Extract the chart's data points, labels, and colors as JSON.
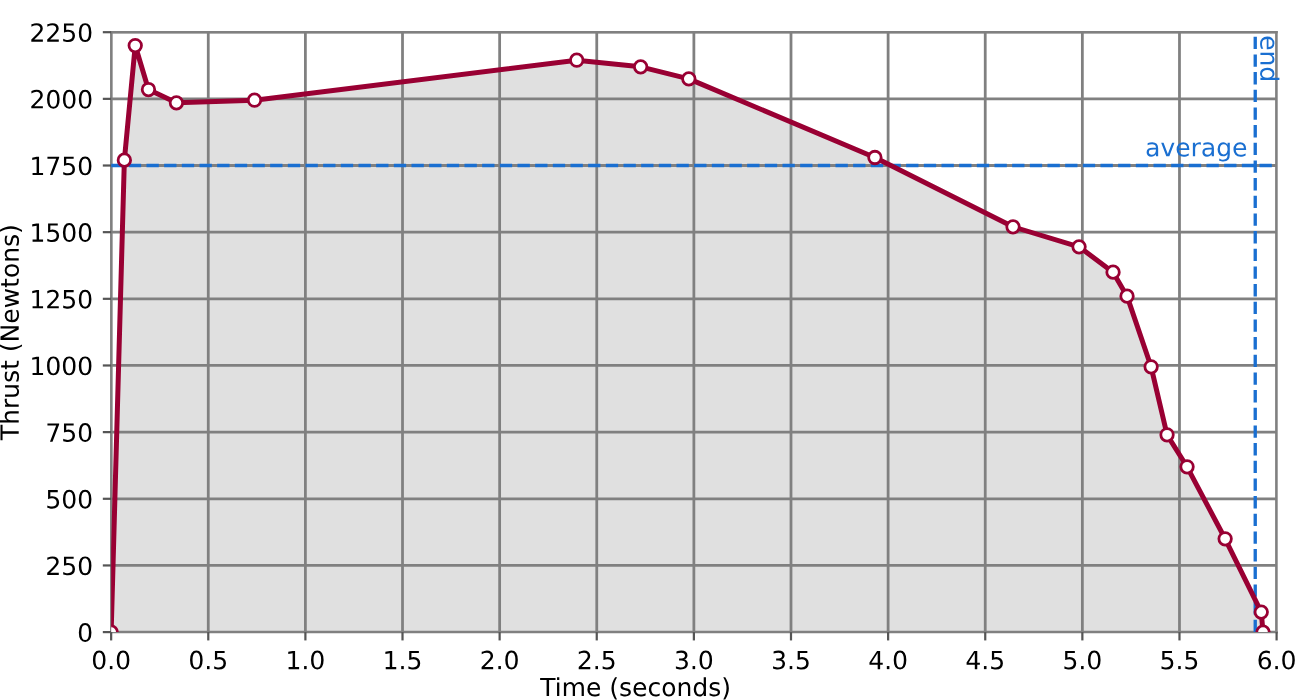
{
  "chart_data": {
    "type": "area",
    "xlabel": "Time (seconds)",
    "ylabel": "Thrust (Newtons)",
    "x": [
      0,
      0.068,
      0.124,
      0.192,
      0.336,
      0.738,
      2.397,
      2.726,
      2.974,
      3.932,
      4.643,
      4.983,
      5.158,
      5.23,
      5.354,
      5.436,
      5.539,
      5.735,
      5.921,
      5.93
    ],
    "series": [
      {
        "color": "#990033",
        "values": [
          0,
          1770,
          2200,
          2035,
          1985,
          1995,
          2145,
          2120,
          2075,
          1780,
          1520,
          1445,
          1350,
          1260,
          995,
          740,
          620,
          350,
          75,
          0
        ]
      }
    ],
    "xlim": [
      0,
      6
    ],
    "xticks": [
      {
        "value": 0,
        "label": "0.0"
      },
      0.5,
      {
        "value": 1,
        "label": "1.0"
      },
      1.5,
      {
        "value": 2,
        "label": "2.0"
      },
      2.5,
      {
        "value": 3,
        "label": "3.0"
      },
      3.5,
      {
        "value": 4,
        "label": "4.0"
      },
      4.5,
      {
        "value": 5,
        "label": "5.0"
      },
      5.5,
      {
        "value": 6,
        "label": "6.0"
      }
    ],
    "ylim": [
      0,
      2250
    ],
    "yticks": [
      0,
      250,
      500,
      750,
      1000,
      1250,
      1500,
      1750,
      2000,
      2250
    ],
    "ref_lines": [
      {
        "axis": "y",
        "value": 1750,
        "label": "average",
        "color": "#1a6fd1",
        "line_style": "dashed"
      },
      {
        "axis": "x",
        "value": 5.89,
        "label": "end",
        "color": "#1a6fd1",
        "line_style": "dashed"
      }
    ],
    "grid": true,
    "marker": "circle",
    "line_style": "solid"
  }
}
